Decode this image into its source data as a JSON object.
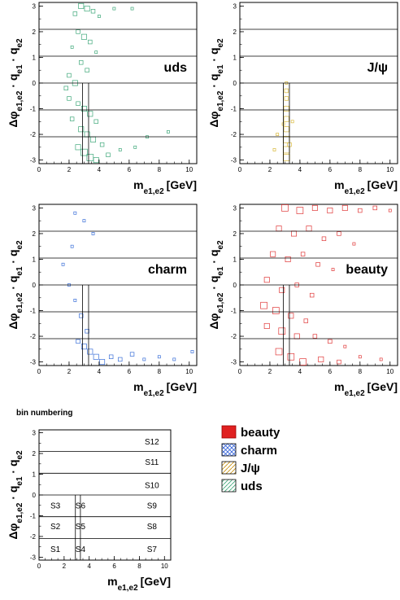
{
  "chart_data": [
    {
      "type": "heatmap",
      "label": "uds",
      "xlabel": "m_{e1,e2} [GeV]",
      "ylabel": "Δφ_{e1,e2} · q_{e1} · q_{e2}",
      "xlim": [
        0,
        10.5
      ],
      "ylim": [
        -3.14,
        3.14
      ],
      "x_ticks": [
        "0",
        "2",
        "4",
        "6",
        "8",
        "10"
      ],
      "y_ticks": [
        "-3",
        "-2",
        "-1",
        "0",
        "1",
        "2",
        "3"
      ],
      "color": "#3fa87a",
      "region": "broad band x 1–5 GeV, dense near x≈2.5–4, all Δφ; sparse tail to 9 GeV",
      "points": [
        [
          2.8,
          3.0,
          3
        ],
        [
          3.2,
          2.9,
          3
        ],
        [
          3.6,
          2.8,
          2
        ],
        [
          2.4,
          2.7,
          2
        ],
        [
          4.0,
          2.6,
          1
        ],
        [
          5.0,
          2.9,
          1
        ],
        [
          6.2,
          2.9,
          1
        ],
        [
          2.6,
          2.0,
          2
        ],
        [
          3.0,
          1.8,
          3
        ],
        [
          3.4,
          1.6,
          2
        ],
        [
          2.2,
          1.4,
          1
        ],
        [
          3.8,
          1.2,
          1
        ],
        [
          2.8,
          0.8,
          2
        ],
        [
          3.2,
          0.5,
          2
        ],
        [
          2.0,
          0.3,
          2
        ],
        [
          2.4,
          0.0,
          3
        ],
        [
          1.8,
          -0.2,
          2
        ],
        [
          2.0,
          -0.6,
          2
        ],
        [
          2.6,
          -0.8,
          2
        ],
        [
          3.0,
          -1.0,
          3
        ],
        [
          3.4,
          -1.2,
          3
        ],
        [
          2.2,
          -1.4,
          2
        ],
        [
          3.8,
          -1.5,
          2
        ],
        [
          2.8,
          -1.8,
          3
        ],
        [
          3.2,
          -2.0,
          3
        ],
        [
          3.6,
          -2.2,
          3
        ],
        [
          4.2,
          -2.4,
          2
        ],
        [
          2.6,
          -2.5,
          3
        ],
        [
          3.0,
          -2.7,
          4
        ],
        [
          3.4,
          -2.9,
          4
        ],
        [
          3.8,
          -3.0,
          3
        ],
        [
          4.6,
          -2.8,
          2
        ],
        [
          5.4,
          -2.6,
          1
        ],
        [
          6.4,
          -2.5,
          1
        ],
        [
          8.6,
          -1.9,
          1
        ],
        [
          7.2,
          -2.1,
          1
        ]
      ]
    },
    {
      "type": "heatmap",
      "label": "J/ψ",
      "xlabel": "m_{e1,e2} [GeV]",
      "ylabel": "Δφ_{e1,e2} · q_{e1} · q_{e2}",
      "xlim": [
        0,
        10.5
      ],
      "ylim": [
        -3.14,
        3.14
      ],
      "x_ticks": [
        "0",
        "2",
        "4",
        "6",
        "8",
        "10"
      ],
      "y_ticks": [
        "-3",
        "-2",
        "-1",
        "0",
        "1",
        "2",
        "3"
      ],
      "color": "#d8b83a",
      "region": "narrow band at x≈2.9–3.3 GeV, Δφ from 0 to -π",
      "points": [
        [
          3.1,
          0.0,
          1
        ],
        [
          3.1,
          -0.3,
          2
        ],
        [
          3.1,
          -0.6,
          2
        ],
        [
          3.1,
          -1.0,
          3
        ],
        [
          3.1,
          -1.4,
          3
        ],
        [
          3.1,
          -1.8,
          3
        ],
        [
          3.1,
          -2.2,
          4
        ],
        [
          3.1,
          -2.6,
          4
        ],
        [
          3.1,
          -2.9,
          4
        ],
        [
          2.9,
          -1.6,
          1
        ],
        [
          3.3,
          -2.4,
          2
        ],
        [
          2.5,
          -2.0,
          1
        ],
        [
          3.5,
          -1.5,
          1
        ],
        [
          2.3,
          -2.6,
          1
        ]
      ]
    },
    {
      "type": "heatmap",
      "label": "charm",
      "xlabel": "m_{e1,e2} [GeV]",
      "ylabel": "Δφ_{e1,e2} · q_{e1} · q_{e2}",
      "xlim": [
        0,
        10.5
      ],
      "ylim": [
        -3.14,
        3.14
      ],
      "x_ticks": [
        "0",
        "2",
        "4",
        "6",
        "8",
        "10"
      ],
      "y_ticks": [
        "-3",
        "-2",
        "-1",
        "0",
        "1",
        "2",
        "3"
      ],
      "color": "#3a6fd8",
      "region": "concentrated at Δφ≈-π for x 2–10 GeV; sparse elsewhere",
      "points": [
        [
          2.4,
          2.8,
          1
        ],
        [
          3.0,
          2.5,
          1
        ],
        [
          3.6,
          2.0,
          1
        ],
        [
          2.2,
          1.5,
          1
        ],
        [
          1.6,
          0.8,
          1
        ],
        [
          2.0,
          0.0,
          1
        ],
        [
          2.4,
          -0.6,
          1
        ],
        [
          2.8,
          -1.2,
          2
        ],
        [
          3.2,
          -1.8,
          2
        ],
        [
          2.6,
          -2.2,
          2
        ],
        [
          3.0,
          -2.4,
          3
        ],
        [
          3.4,
          -2.6,
          3
        ],
        [
          3.8,
          -2.8,
          3
        ],
        [
          4.2,
          -3.0,
          3
        ],
        [
          4.8,
          -2.8,
          2
        ],
        [
          5.4,
          -2.9,
          2
        ],
        [
          6.2,
          -2.7,
          2
        ],
        [
          7.0,
          -2.9,
          1
        ],
        [
          8.0,
          -2.8,
          1
        ],
        [
          9.0,
          -2.9,
          1
        ],
        [
          10.2,
          -2.6,
          1
        ]
      ]
    },
    {
      "type": "heatmap",
      "label": "beauty",
      "xlabel": "m_{e1,e2} [GeV]",
      "ylabel": "Δφ_{e1,e2} · q_{e1} · q_{e2}",
      "xlim": [
        0,
        10.5
      ],
      "ylim": [
        -3.14,
        3.14
      ],
      "x_ticks": [
        "0",
        "2",
        "4",
        "6",
        "8",
        "10"
      ],
      "y_ticks": [
        "-3",
        "-2",
        "-1",
        "0",
        "1",
        "2",
        "3"
      ],
      "color": "#e03838",
      "region": "broad coverage x 1–10 GeV, all Δφ; dense at low mass and Δφ≈±π",
      "points": [
        [
          3.0,
          3.0,
          4
        ],
        [
          4.0,
          2.9,
          4
        ],
        [
          5.0,
          3.0,
          3
        ],
        [
          6.0,
          2.9,
          3
        ],
        [
          7.0,
          3.0,
          3
        ],
        [
          8.0,
          2.9,
          2
        ],
        [
          9.0,
          3.0,
          2
        ],
        [
          10.0,
          2.9,
          1
        ],
        [
          2.6,
          2.2,
          3
        ],
        [
          3.6,
          2.0,
          3
        ],
        [
          4.6,
          2.2,
          3
        ],
        [
          5.6,
          1.8,
          2
        ],
        [
          6.6,
          2.0,
          2
        ],
        [
          7.6,
          1.6,
          1
        ],
        [
          2.2,
          1.2,
          3
        ],
        [
          3.2,
          1.0,
          3
        ],
        [
          4.2,
          1.2,
          2
        ],
        [
          5.2,
          0.8,
          2
        ],
        [
          6.2,
          0.6,
          1
        ],
        [
          1.8,
          0.2,
          3
        ],
        [
          2.8,
          -0.2,
          3
        ],
        [
          3.8,
          0.0,
          2
        ],
        [
          4.8,
          -0.4,
          2
        ],
        [
          1.6,
          -0.8,
          4
        ],
        [
          2.4,
          -1.0,
          4
        ],
        [
          3.4,
          -1.2,
          3
        ],
        [
          4.4,
          -1.4,
          2
        ],
        [
          1.8,
          -1.6,
          3
        ],
        [
          2.8,
          -1.8,
          4
        ],
        [
          3.8,
          -2.0,
          3
        ],
        [
          5.0,
          -2.0,
          2
        ],
        [
          6.0,
          -2.2,
          2
        ],
        [
          7.0,
          -2.4,
          1
        ],
        [
          2.6,
          -2.6,
          4
        ],
        [
          3.4,
          -2.8,
          4
        ],
        [
          4.2,
          -3.0,
          4
        ],
        [
          5.4,
          -2.9,
          3
        ],
        [
          6.6,
          -3.0,
          2
        ],
        [
          8.0,
          -2.8,
          1
        ],
        [
          9.4,
          -2.9,
          1
        ]
      ]
    },
    {
      "type": "table",
      "label": "bin numbering",
      "xlabel": "m_{e1,e2} [GeV]",
      "ylabel": "Δφ_{e1,e2} · q_{e1} · q_{e2}",
      "xlim": [
        0,
        10.5
      ],
      "ylim": [
        -3.14,
        3.14
      ],
      "x_ticks": [
        "0",
        "2",
        "4",
        "6",
        "8",
        "10"
      ],
      "y_ticks": [
        "-3",
        "-2",
        "-1",
        "0",
        "1",
        "2",
        "3"
      ],
      "bins": [
        {
          "name": "S1",
          "x": 1.3,
          "y": -2.6
        },
        {
          "name": "S2",
          "x": 1.3,
          "y": -1.5
        },
        {
          "name": "S3",
          "x": 1.3,
          "y": -0.5
        },
        {
          "name": "S4",
          "x": 3.3,
          "y": -2.6
        },
        {
          "name": "S5",
          "x": 3.3,
          "y": -1.5
        },
        {
          "name": "S6",
          "x": 3.3,
          "y": -0.5
        },
        {
          "name": "S7",
          "x": 9.0,
          "y": -2.6
        },
        {
          "name": "S8",
          "x": 9.0,
          "y": -1.5
        },
        {
          "name": "S9",
          "x": 9.0,
          "y": -0.5
        },
        {
          "name": "S10",
          "x": 9.0,
          "y": 0.5
        },
        {
          "name": "S11",
          "x": 9.0,
          "y": 1.6
        },
        {
          "name": "S12",
          "x": 9.0,
          "y": 2.6
        }
      ]
    }
  ],
  "legend": [
    {
      "name": "beauty",
      "color": "#e02020",
      "pattern": "solid"
    },
    {
      "name": "charm",
      "color": "#3060d8",
      "pattern": "cross"
    },
    {
      "name": "J/ψ",
      "color": "#d8a820",
      "pattern": "diag"
    },
    {
      "name": "uds",
      "color": "#3fa87a",
      "pattern": "diag"
    }
  ],
  "bin_title": "bin numbering",
  "hlines": [
    -2.094,
    -1.047,
    0,
    1.047,
    2.094
  ],
  "vlines": [
    2.9,
    3.3
  ]
}
